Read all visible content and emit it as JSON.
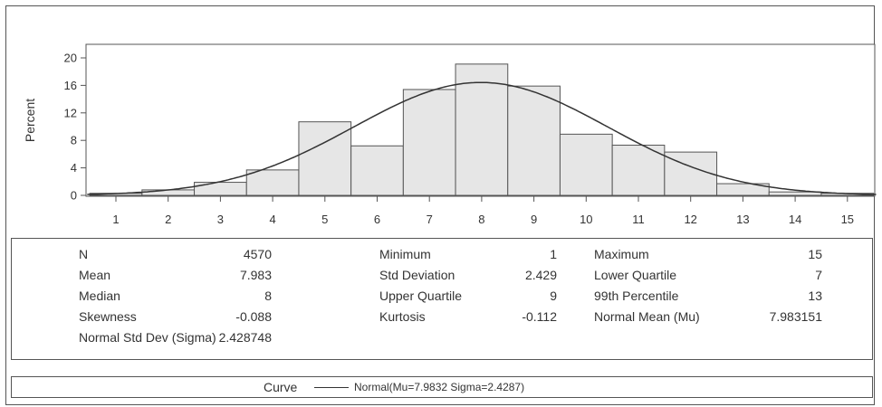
{
  "chart_data": {
    "type": "bar",
    "categories": [
      "1",
      "2",
      "3",
      "4",
      "5",
      "6",
      "7",
      "8",
      "9",
      "10",
      "11",
      "12",
      "13",
      "14",
      "15"
    ],
    "values": [
      0.3,
      0.8,
      1.9,
      3.7,
      10.7,
      7.2,
      15.4,
      19.1,
      15.9,
      8.9,
      7.3,
      6.3,
      1.7,
      0.5,
      0.3
    ],
    "xlabel": "",
    "ylabel": "Percent",
    "ylim": [
      0,
      22
    ],
    "yticks": [
      "0",
      "4",
      "8",
      "12",
      "16",
      "20"
    ],
    "xticks": [
      "1",
      "2",
      "3",
      "4",
      "5",
      "6",
      "7",
      "8",
      "9",
      "10",
      "11",
      "12",
      "13",
      "14",
      "15"
    ],
    "grid": false,
    "curve": {
      "type": "normal",
      "mu": 7.983151,
      "sigma": 2.428748
    },
    "colors": {
      "bar_fill": "#e6e6e6",
      "bar_stroke": "#555555",
      "curve": "#333333"
    }
  },
  "stats": {
    "col1": [
      {
        "label": "N",
        "value": "4570"
      },
      {
        "label": "Mean",
        "value": "7.983"
      },
      {
        "label": "Median",
        "value": "8"
      },
      {
        "label": "Skewness",
        "value": "-0.088"
      },
      {
        "label": "Normal Std Dev (Sigma)",
        "value": "2.428748"
      }
    ],
    "col2": [
      {
        "label": "Minimum",
        "value": "1"
      },
      {
        "label": "Std Deviation",
        "value": "2.429"
      },
      {
        "label": "Upper Quartile",
        "value": "9"
      },
      {
        "label": "Kurtosis",
        "value": "-0.112"
      }
    ],
    "col3": [
      {
        "label": "Maximum",
        "value": "15"
      },
      {
        "label": "Lower Quartile",
        "value": "7"
      },
      {
        "label": "99th Percentile",
        "value": "13"
      },
      {
        "label": "Normal Mean (Mu)",
        "value": "7.983151"
      }
    ]
  },
  "legend": {
    "title": "Curve",
    "entry": "Normal(Mu=7.9832 Sigma=2.4287)"
  }
}
